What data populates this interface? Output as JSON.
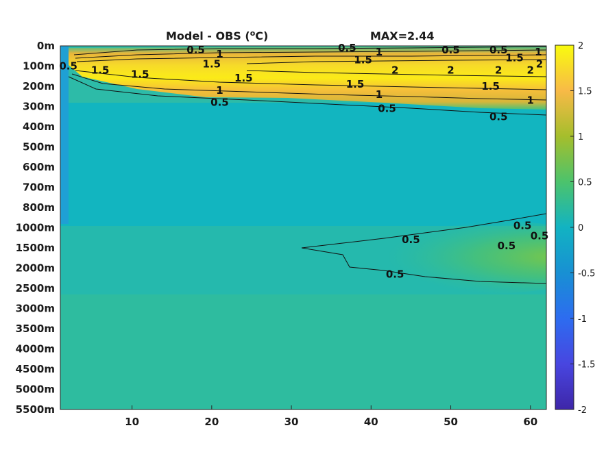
{
  "chart_data": {
    "type": "heatmap",
    "title_left": "Model - OBS (",
    "title_sup": "o",
    "title_right": "C)",
    "title_max": "MAX=2.44",
    "xlim": [
      1,
      62
    ],
    "x_ticks": [
      {
        "value": 10,
        "label": "10"
      },
      {
        "value": 20,
        "label": "20"
      },
      {
        "value": 30,
        "label": "30"
      },
      {
        "value": 40,
        "label": "40"
      },
      {
        "value": 50,
        "label": "50"
      },
      {
        "value": 60,
        "label": "60"
      }
    ],
    "y_ticks": [
      "0m",
      "100m",
      "200m",
      "300m",
      "400m",
      "500m",
      "600m",
      "700m",
      "800m",
      "1000m",
      "1500m",
      "2000m",
      "2500m",
      "3000m",
      "3500m",
      "4000m",
      "4500m",
      "5000m",
      "5500m"
    ],
    "colorbar": {
      "min": -2,
      "max": 2,
      "ticks": [
        "2",
        "1.5",
        "1",
        "0.5",
        "0",
        "-0.5",
        "-1",
        "-1.5",
        "-2"
      ],
      "colormap": "parula"
    },
    "contour_levels": [
      "0.5",
      "1",
      "1.5",
      "2"
    ],
    "contour_labels": [
      {
        "text": "0.5",
        "level": 0.5,
        "x": 18,
        "depth": 0.2
      },
      {
        "text": "1",
        "level": 1,
        "x": 21,
        "depth": 0.4
      },
      {
        "text": "1.5",
        "level": 1.5,
        "x": 20,
        "depth": 0.9
      },
      {
        "text": "0.5",
        "level": 0.5,
        "x": 37,
        "depth": 0.1
      },
      {
        "text": "1",
        "level": 1,
        "x": 41,
        "depth": 0.3
      },
      {
        "text": "0.5",
        "level": 0.5,
        "x": 50,
        "depth": 0.2
      },
      {
        "text": "0.5",
        "level": 0.5,
        "x": 56,
        "depth": 0.2
      },
      {
        "text": "1",
        "level": 1,
        "x": 61,
        "depth": 0.3
      },
      {
        "text": "1.5",
        "level": 1.5,
        "x": 39,
        "depth": 0.7
      },
      {
        "text": "1.5",
        "level": 1.5,
        "x": 58,
        "depth": 0.6
      },
      {
        "text": "2",
        "level": 2,
        "x": 62,
        "depth": 0.9
      },
      {
        "text": "2",
        "level": 2,
        "x": 43,
        "depth": 1.2
      },
      {
        "text": "2",
        "level": 2,
        "x": 50,
        "depth": 1.2
      },
      {
        "text": "2",
        "level": 2,
        "x": 56,
        "depth": 1.2
      },
      {
        "text": "2",
        "level": 2,
        "x": 60,
        "depth": 1.2
      },
      {
        "text": "0.5",
        "level": 0.5,
        "x": 2,
        "depth": 1.0
      },
      {
        "text": "1.5",
        "level": 1.5,
        "x": 6,
        "depth": 1.2
      },
      {
        "text": "1.5",
        "level": 1.5,
        "x": 11,
        "depth": 1.4
      },
      {
        "text": "1.5",
        "level": 1.5,
        "x": 24,
        "depth": 1.6
      },
      {
        "text": "1",
        "level": 1,
        "x": 21,
        "depth": 2.2
      },
      {
        "text": "1.5",
        "level": 1.5,
        "x": 38,
        "depth": 1.9
      },
      {
        "text": "1",
        "level": 1,
        "x": 41,
        "depth": 2.4
      },
      {
        "text": "1.5",
        "level": 1.5,
        "x": 55,
        "depth": 2.0
      },
      {
        "text": "0.5",
        "level": 0.5,
        "x": 21,
        "depth": 2.8
      },
      {
        "text": "0.5",
        "level": 0.5,
        "x": 42,
        "depth": 3.1
      },
      {
        "text": "1",
        "level": 1,
        "x": 60,
        "depth": 2.7
      },
      {
        "text": "0.5",
        "level": 0.5,
        "x": 56,
        "depth": 3.5
      },
      {
        "text": "0.5",
        "level": 0.5,
        "x": 67,
        "depth": 9.4
      },
      {
        "text": "0.5",
        "level": 0.5,
        "x": 57,
        "depth": 9.9
      },
      {
        "text": "0.5",
        "level": 0.5,
        "x": 45,
        "depth": 9.6
      },
      {
        "text": "0.5",
        "level": 0.5,
        "x": 59,
        "depth": 8.9
      },
      {
        "text": "0.5",
        "level": 0.5,
        "x": 43,
        "depth": 11.3
      }
    ]
  }
}
